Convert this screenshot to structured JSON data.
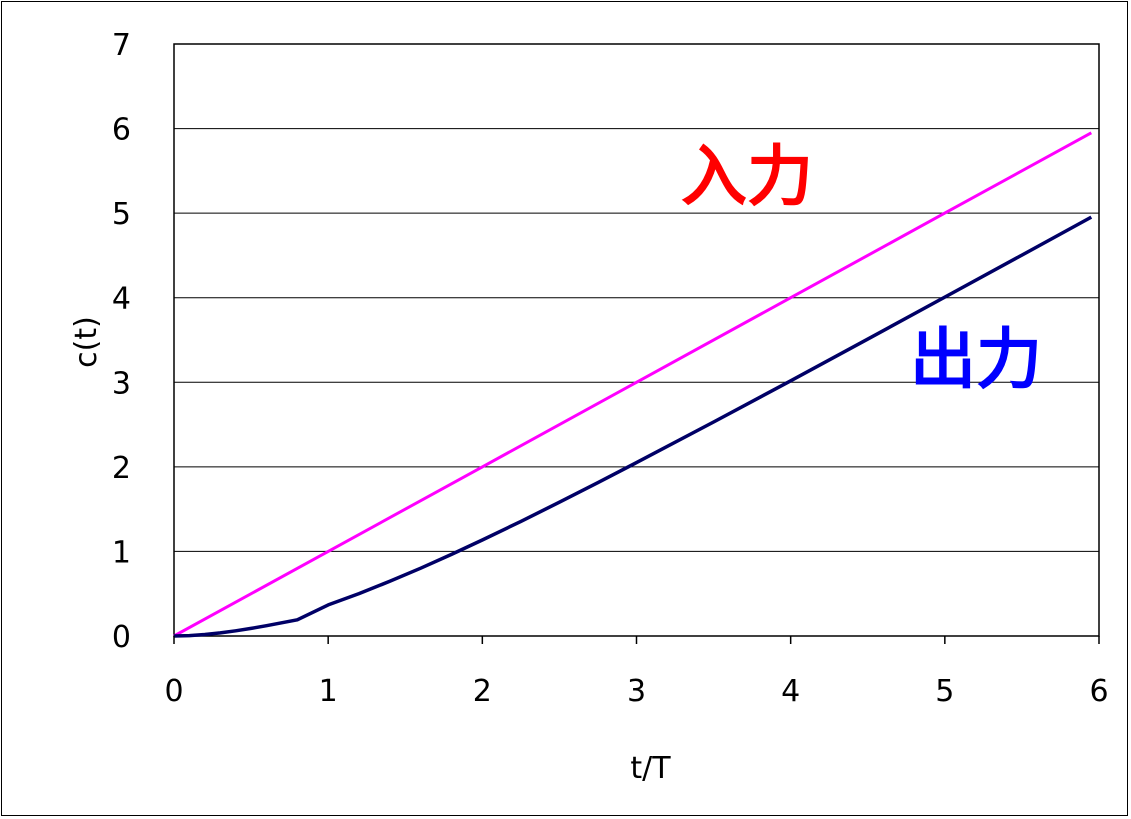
{
  "chart_data": {
    "type": "line",
    "xlabel": "t/T",
    "ylabel": "c(t)",
    "xlim": [
      0,
      6
    ],
    "ylim": [
      0,
      7
    ],
    "x_ticks": [
      "0",
      "1",
      "2",
      "3",
      "4",
      "5",
      "6"
    ],
    "y_ticks": [
      "0",
      "1",
      "2",
      "3",
      "4",
      "5",
      "6",
      "7"
    ],
    "grid": "horizontal",
    "series": [
      {
        "name": "入力",
        "color": "#ff00ff",
        "label_color": "#ff0000",
        "x": [
          0,
          1,
          2,
          3,
          4,
          5,
          5.95
        ],
        "y": [
          0,
          1,
          2,
          3,
          4,
          5,
          5.95
        ]
      },
      {
        "name": "出力",
        "color": "#000066",
        "label_color": "#0000ff",
        "x": [
          0,
          0.1,
          0.2,
          0.3,
          0.4,
          0.5,
          0.6,
          0.8,
          1.0,
          1.2,
          1.4,
          1.6,
          1.8,
          2.0,
          2.25,
          2.5,
          2.75,
          3.0,
          3.5,
          4.0,
          4.5,
          5.0,
          5.5,
          5.95
        ],
        "y": [
          0,
          0.005,
          0.018,
          0.037,
          0.062,
          0.09,
          0.122,
          0.191,
          0.368,
          0.501,
          0.647,
          0.802,
          0.965,
          1.135,
          1.355,
          1.582,
          1.814,
          2.05,
          2.53,
          3.018,
          3.511,
          4.007,
          4.504,
          4.953
        ]
      }
    ]
  }
}
